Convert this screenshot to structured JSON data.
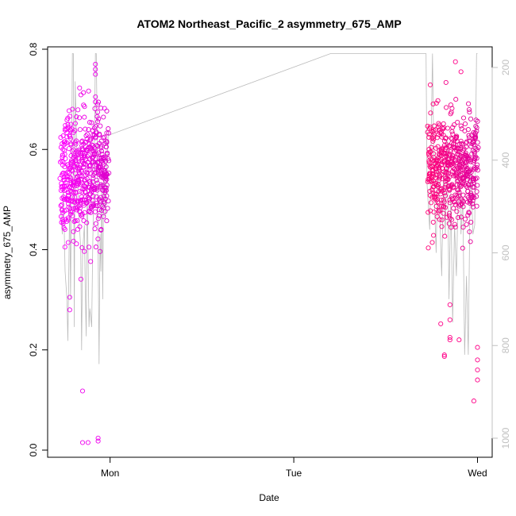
{
  "chart_data": {
    "type": "scatter",
    "title": "ATOM2 Northeast_Pacific_2 asymmetry_675_AMP",
    "xlabel": "Date",
    "ylabel": "asymmetry_675_AMP",
    "x_ticks": [
      "Mon",
      "Tue",
      "Wed"
    ],
    "x_range_days": [
      -0.34,
      2.08
    ],
    "y_ticks": [
      "0.0",
      "0.2",
      "0.4",
      "0.6",
      "0.8"
    ],
    "y_tick_values": [
      0.0,
      0.2,
      0.4,
      0.6,
      0.8
    ],
    "ylim": [
      0.0,
      0.8
    ],
    "y2_ticks": [
      "200",
      "400",
      "600",
      "800",
      "1000"
    ],
    "y2_tick_values": [
      200,
      400,
      600,
      800,
      1000
    ],
    "y2lim": [
      1030,
      170
    ],
    "grid": false,
    "colors": {
      "series_early": "#ee00ee",
      "series_late": "#ff0088",
      "depth_line": "#bbbbbb",
      "axis": "#000000",
      "right_axis": "#c0c0c0"
    },
    "clusters": [
      {
        "name": "",
        "x_start": -0.27,
        "x_end": -0.01,
        "y_center": 0.55,
        "spread": 0.06,
        "color_start": "#ff00ff",
        "color_end": "#dd00cc",
        "count": 520
      },
      {
        "name": "",
        "x_start": 1.73,
        "x_end": 2.0,
        "y_center": 0.56,
        "spread": 0.055,
        "color_start": "#ff0077",
        "color_end": "#e000a0",
        "count": 520
      }
    ],
    "outliers": [
      {
        "x": -0.15,
        "y": 0.118
      },
      {
        "x": -0.15,
        "y": 0.015
      },
      {
        "x": -0.12,
        "y": 0.015
      },
      {
        "x": -0.065,
        "y": 0.018
      },
      {
        "x": -0.065,
        "y": 0.024
      },
      {
        "x": -0.22,
        "y": 0.28
      },
      {
        "x": -0.22,
        "y": 0.305
      },
      {
        "x": 1.82,
        "y": 0.187
      },
      {
        "x": 1.82,
        "y": 0.19
      },
      {
        "x": 1.98,
        "y": 0.098
      },
      {
        "x": 2.0,
        "y": 0.14
      },
      {
        "x": 2.0,
        "y": 0.16
      },
      {
        "x": 2.0,
        "y": 0.18
      },
      {
        "x": 2.0,
        "y": 0.205
      },
      {
        "x": 1.85,
        "y": 0.225
      },
      {
        "x": 1.85,
        "y": 0.22
      },
      {
        "x": 1.9,
        "y": 0.22
      },
      {
        "x": 1.8,
        "y": 0.252
      },
      {
        "x": 1.85,
        "y": 0.26
      },
      {
        "x": 1.85,
        "y": 0.29
      },
      {
        "x": -0.08,
        "y": 0.77
      },
      {
        "x": -0.08,
        "y": 0.76
      },
      {
        "x": -0.08,
        "y": 0.75
      },
      {
        "x": -0.08,
        "y": 0.705
      },
      {
        "x": -0.08,
        "y": 0.695
      },
      {
        "x": -0.03,
        "y": 0.682
      },
      {
        "x": 1.88,
        "y": 0.775
      },
      {
        "x": 1.91,
        "y": 0.755
      }
    ],
    "depth_line_points": [
      [
        -0.27,
        500
      ],
      [
        -0.26,
        560
      ],
      [
        -0.255,
        450
      ],
      [
        -0.245,
        640
      ],
      [
        -0.235,
        700
      ],
      [
        -0.23,
        790
      ],
      [
        -0.225,
        650
      ],
      [
        -0.22,
        480
      ],
      [
        -0.215,
        700
      ],
      [
        -0.21,
        420
      ],
      [
        -0.205,
        170
      ],
      [
        -0.2,
        170
      ],
      [
        -0.195,
        760
      ],
      [
        -0.19,
        230
      ],
      [
        -0.18,
        400
      ],
      [
        -0.17,
        520
      ],
      [
        -0.16,
        590
      ],
      [
        -0.155,
        810
      ],
      [
        -0.15,
        600
      ],
      [
        -0.14,
        540
      ],
      [
        -0.135,
        680
      ],
      [
        -0.13,
        780
      ],
      [
        -0.125,
        450
      ],
      [
        -0.115,
        760
      ],
      [
        -0.11,
        720
      ],
      [
        -0.1,
        760
      ],
      [
        -0.095,
        600
      ],
      [
        -0.085,
        350
      ],
      [
        -0.08,
        170
      ],
      [
        -0.075,
        170
      ],
      [
        -0.07,
        350
      ],
      [
        -0.06,
        840
      ],
      [
        -0.055,
        560
      ],
      [
        -0.05,
        640
      ],
      [
        -0.045,
        450
      ],
      [
        -0.04,
        700
      ],
      [
        -0.035,
        420
      ],
      [
        -0.025,
        520
      ],
      [
        -0.02,
        420
      ],
      [
        -0.01,
        345
      ],
      [
        0.0,
        345
      ],
      [
        1.2,
        170
      ],
      [
        1.72,
        170
      ],
      [
        1.725,
        450
      ],
      [
        1.74,
        550
      ],
      [
        1.75,
        300
      ],
      [
        1.755,
        170
      ],
      [
        1.765,
        480
      ],
      [
        1.775,
        600
      ],
      [
        1.785,
        380
      ],
      [
        1.795,
        520
      ],
      [
        1.805,
        650
      ],
      [
        1.815,
        420
      ],
      [
        1.825,
        560
      ],
      [
        1.835,
        350
      ],
      [
        1.845,
        700
      ],
      [
        1.855,
        470
      ],
      [
        1.865,
        750
      ],
      [
        1.875,
        540
      ],
      [
        1.885,
        650
      ],
      [
        1.895,
        470
      ],
      [
        1.9,
        380
      ],
      [
        1.91,
        560
      ],
      [
        1.92,
        480
      ],
      [
        1.93,
        820
      ],
      [
        1.94,
        650
      ],
      [
        1.95,
        820
      ],
      [
        1.96,
        460
      ],
      [
        1.965,
        420
      ],
      [
        1.975,
        560
      ],
      [
        1.985,
        540
      ],
      [
        1.995,
        170
      ],
      [
        2.0,
        170
      ]
    ]
  }
}
